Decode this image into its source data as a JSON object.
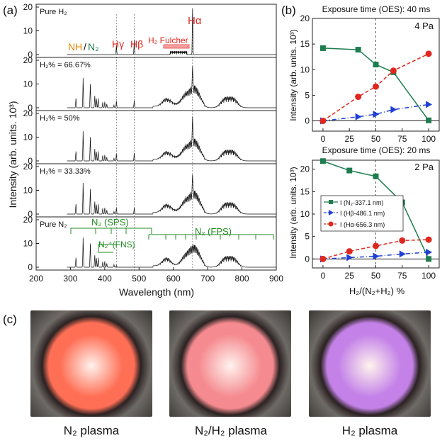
{
  "panel_labels": {
    "a": "(a)",
    "b": "(b)",
    "c": "(c)"
  },
  "colors": {
    "red": "#e0271f",
    "green": "#238b23",
    "orange": "#e08a00",
    "blue": "#1f3fd6",
    "teal": "#1e7d4f",
    "grid": "#999999"
  },
  "chart_data": [
    {
      "type": "line",
      "id": "a",
      "xlabel": "Wavelength (nm)",
      "ylabel": "Intensity (arb. units. 10³)",
      "xlim": [
        200,
        900
      ],
      "xticks": [
        "200",
        "300",
        "400",
        "500",
        "600",
        "700",
        "800",
        "900"
      ],
      "ref_lines_nm": [
        434,
        486,
        656
      ],
      "subpanels": [
        {
          "label": "Pure H₂",
          "ylim": [
            0,
            20
          ],
          "yticks": [
            "0",
            "10",
            "20"
          ],
          "n2_scale": 0,
          "h2_scale": 1
        },
        {
          "label": "H₂% = 66.67%",
          "ylim": [
            0,
            20
          ],
          "yticks": [
            "0",
            "10",
            "20"
          ],
          "n2_scale": 1,
          "h2_scale": 0.5
        },
        {
          "label": "H₂% = 50%",
          "ylim": [
            0,
            20
          ],
          "yticks": [
            "0",
            "10",
            "20"
          ],
          "n2_scale": 1,
          "h2_scale": 0.55
        },
        {
          "label": "H₂% = 33.33%",
          "ylim": [
            0,
            20
          ],
          "yticks": [
            "0",
            "10",
            "20"
          ],
          "n2_scale": 1.05,
          "h2_scale": 0.45
        },
        {
          "label": "Pure N₂",
          "ylim": [
            0,
            20
          ],
          "yticks": [
            "0",
            "10",
            "20"
          ],
          "n2_scale": 1,
          "h2_scale": 0
        }
      ],
      "n2_lines": [
        [
          316,
          4
        ],
        [
          337,
          12.5
        ],
        [
          358,
          10
        ],
        [
          371,
          5
        ],
        [
          376,
          3.8
        ],
        [
          381,
          4
        ],
        [
          394,
          2.3
        ],
        [
          400,
          2.5
        ],
        [
          406,
          1.6
        ],
        [
          427,
          1.1
        ],
        [
          434,
          0.8
        ]
      ],
      "n2_bands": [
        [
          580,
          3.5
        ],
        [
          634,
          4
        ],
        [
          655,
          5.5
        ],
        [
          670,
          5
        ],
        [
          750,
          4
        ],
        [
          775,
          4
        ]
      ],
      "h2_lines": [
        [
          434,
          2
        ],
        [
          486,
          3
        ],
        [
          656,
          11.5
        ]
      ],
      "annotations": {
        "nh": "NH",
        "slash": "/",
        "n2": "N₂",
        "h_gamma": "Hγ",
        "h_beta": "Hβ",
        "h_alpha": "Hα",
        "fulcher": "H₂ Fulcher",
        "sps": "N₂ (SPS)",
        "fps": "N₂ (FPS)",
        "fns": "N₂⁺(FNS)"
      }
    },
    {
      "type": "line",
      "id": "b_top",
      "title": "Exposure time (OES): 40 ms",
      "pressure_label": "4 Pa",
      "x": [
        0,
        33.33,
        50,
        66.67,
        100
      ],
      "xlim": [
        -10,
        110
      ],
      "ylim": [
        -2,
        20
      ],
      "yticks": [
        "0",
        "5",
        "10",
        "15",
        "20"
      ],
      "series": [
        {
          "name": "I (N₂-337.1 nm)",
          "values": [
            14.2,
            13.9,
            11.0,
            9.5,
            0.1
          ]
        },
        {
          "name": "I (Hβ-486.1 nm)",
          "values": [
            0.0,
            0.8,
            1.3,
            2.2,
            3.2
          ]
        },
        {
          "name": "I (Hα-656.3 nm)",
          "values": [
            0.0,
            4.7,
            6.7,
            9.8,
            13.1
          ]
        }
      ]
    },
    {
      "type": "line",
      "id": "b_bottom",
      "title": "Exposure time (OES): 20 ms",
      "pressure_label": "2 Pa",
      "xlabel": "H₂/(N₂+H₂) %",
      "x": [
        0,
        25,
        50,
        75,
        100
      ],
      "xlim": [
        -10,
        110
      ],
      "ylim": [
        -2,
        22
      ],
      "xticks": [
        "0",
        "25",
        "50",
        "75",
        "100"
      ],
      "yticks": [
        "0",
        "5",
        "10",
        "15",
        "20"
      ],
      "series": [
        {
          "name": "I (N₂-337.1 nm)",
          "values": [
            21.8,
            19.7,
            18.4,
            12.6,
            0.0
          ]
        },
        {
          "name": "I (Hβ-486.1 nm)",
          "values": [
            0.0,
            0.3,
            0.6,
            1.1,
            1.5
          ]
        },
        {
          "name": "I (Hα-656.3 nm)",
          "values": [
            0.0,
            1.7,
            2.9,
            4.1,
            4.3
          ]
        }
      ]
    }
  ],
  "photos": [
    {
      "caption": "N₂ plasma",
      "glow": "#ff6f55"
    },
    {
      "caption": "N₂/H₂ plasma",
      "glow": "#f58b90"
    },
    {
      "caption": "H₂ plasma",
      "glow": "#c482e8"
    }
  ]
}
